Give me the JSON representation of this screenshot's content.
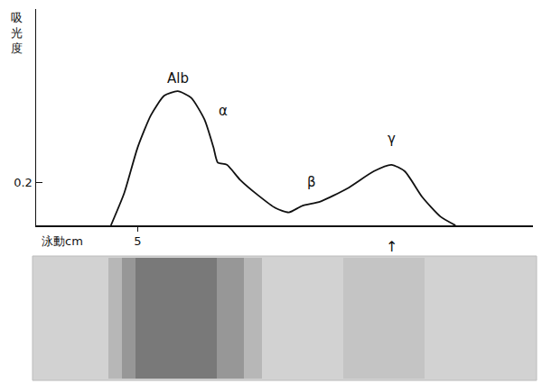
{
  "chart_data": {
    "type": "line",
    "xlabel": "泳動cm",
    "ylabel": "吸光度",
    "x": [
      4.5,
      4.75,
      5.0,
      5.25,
      5.5,
      5.75,
      6.0,
      6.25,
      6.42,
      6.5,
      6.67,
      6.92,
      7.25,
      7.58,
      7.83,
      8.08,
      8.42,
      8.92,
      9.42,
      9.75,
      10.0,
      10.33,
      10.67,
      10.95
    ],
    "values": [
      0,
      0.15,
      0.36,
      0.51,
      0.6,
      0.62,
      0.59,
      0.49,
      0.36,
      0.29,
      0.28,
      0.21,
      0.14,
      0.08,
      0.06,
      0.09,
      0.11,
      0.17,
      0.25,
      0.28,
      0.25,
      0.13,
      0.04,
      0
    ],
    "color": "#111111",
    "xlim": [
      3.1,
      12.4
    ],
    "ylim": [
      0,
      1.0
    ],
    "xticks": [
      5
    ],
    "yticks": [
      0.2
    ],
    "grid": false,
    "annotations": [
      {
        "text": "Alb",
        "x": 5.75,
        "y": 0.68
      },
      {
        "text": "α",
        "x": 6.6,
        "y": 0.53
      },
      {
        "text": "β",
        "x": 8.25,
        "y": 0.2
      },
      {
        "text": "γ",
        "x": 9.75,
        "y": 0.4
      },
      {
        "text": "↑",
        "x": 9.75
      }
    ]
  }
}
